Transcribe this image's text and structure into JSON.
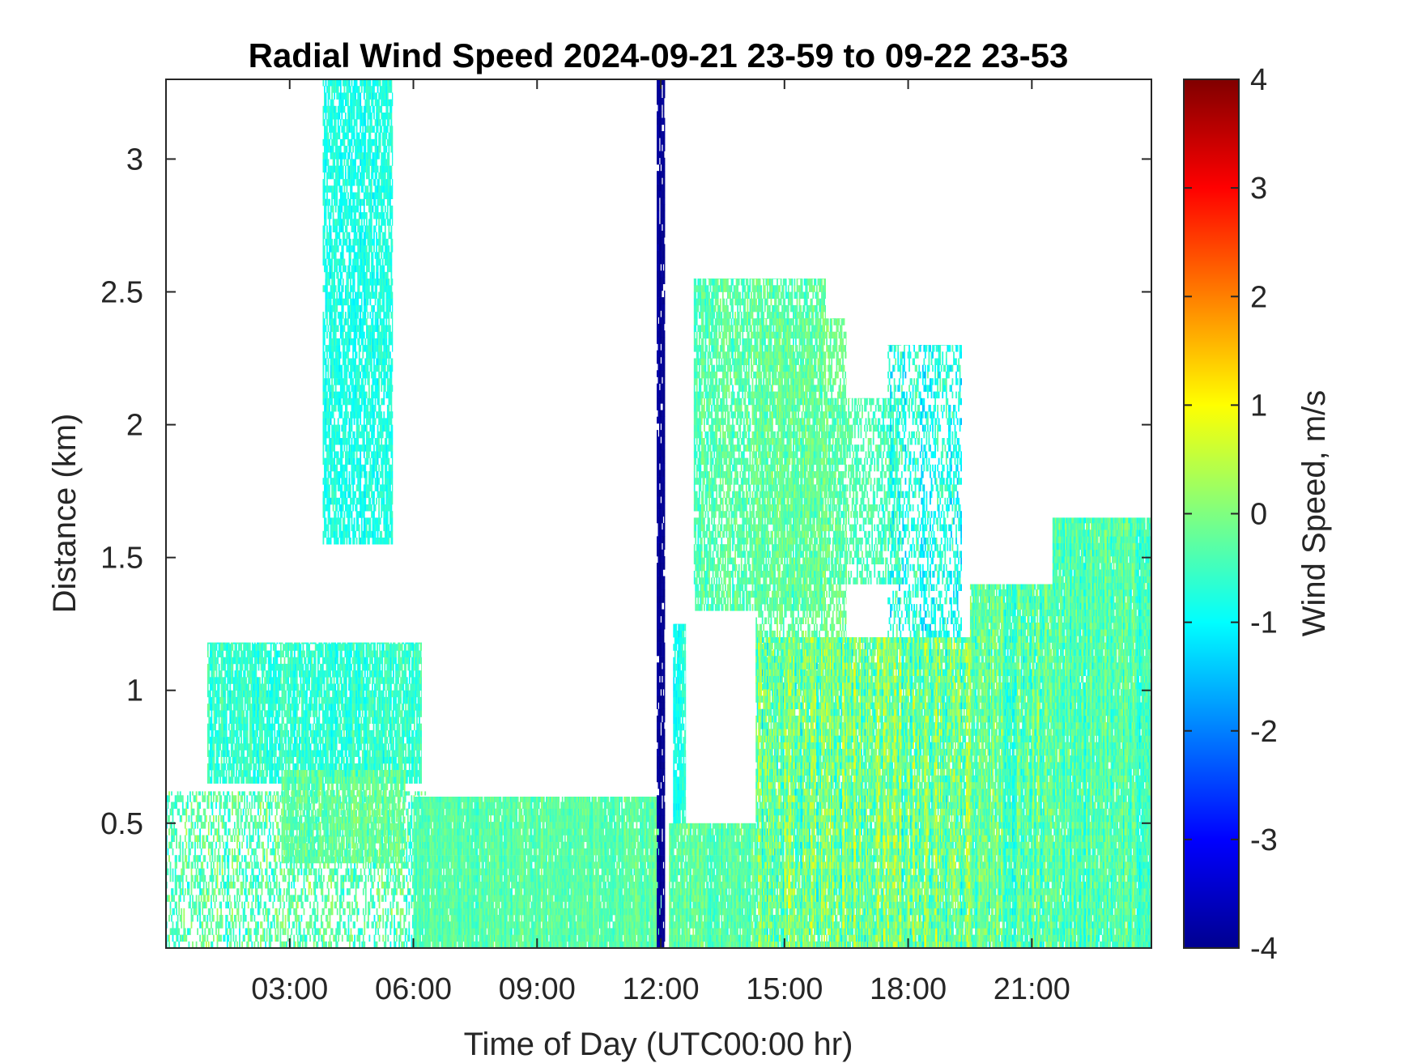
{
  "chart_data": {
    "type": "heatmap",
    "title": "Radial Wind Speed 2024-09-21 23-59 to 09-22 23-53",
    "xlabel": "Time of Day (UTC00:00 hr)",
    "ylabel": "Distance (km)",
    "colorbar_label": "Wind Speed, m/s",
    "colormap": "jet",
    "xlim_hours": [
      0.0,
      23.9
    ],
    "ylim_km": [
      0.03,
      3.3
    ],
    "clim": [
      -4,
      4
    ],
    "x_ticks": [
      {
        "value": 3,
        "label": "03:00"
      },
      {
        "value": 6,
        "label": "06:00"
      },
      {
        "value": 9,
        "label": "09:00"
      },
      {
        "value": 12,
        "label": "12:00"
      },
      {
        "value": 15,
        "label": "15:00"
      },
      {
        "value": 18,
        "label": "18:00"
      },
      {
        "value": 21,
        "label": "21:00"
      }
    ],
    "y_ticks": [
      {
        "value": 0.5,
        "label": "0.5"
      },
      {
        "value": 1,
        "label": "1"
      },
      {
        "value": 1.5,
        "label": "1.5"
      },
      {
        "value": 2,
        "label": "2"
      },
      {
        "value": 2.5,
        "label": "2.5"
      },
      {
        "value": 3,
        "label": "3"
      }
    ],
    "colorbar_ticks": [
      {
        "value": 4,
        "label": "4"
      },
      {
        "value": 3,
        "label": "3"
      },
      {
        "value": 2,
        "label": "2"
      },
      {
        "value": 1,
        "label": "1"
      },
      {
        "value": 0,
        "label": "0"
      },
      {
        "value": -1,
        "label": "-1"
      },
      {
        "value": -2,
        "label": "-2"
      },
      {
        "value": -3,
        "label": "-3"
      },
      {
        "value": -4,
        "label": "-4"
      }
    ],
    "regions": [
      {
        "t0": 0.0,
        "t1": 6.3,
        "d0": 0.03,
        "d1": 0.62,
        "mean": -0.3,
        "spread": 0.9,
        "density": 0.45
      },
      {
        "t0": 1.0,
        "t1": 6.2,
        "d0": 0.65,
        "d1": 1.18,
        "mean": -0.6,
        "spread": 0.6,
        "density": 0.85
      },
      {
        "t0": 2.8,
        "t1": 5.8,
        "d0": 0.35,
        "d1": 0.7,
        "mean": -0.2,
        "spread": 0.6,
        "density": 0.8
      },
      {
        "t0": 3.8,
        "t1": 5.5,
        "d0": 1.55,
        "d1": 3.3,
        "mean": -0.8,
        "spread": 0.5,
        "density": 0.75
      },
      {
        "t0": 6.0,
        "t1": 12.0,
        "d0": 0.03,
        "d1": 0.6,
        "mean": -0.3,
        "spread": 0.5,
        "density": 0.95
      },
      {
        "t0": 11.9,
        "t1": 12.1,
        "d0": 0.03,
        "d1": 3.3,
        "mean": -3.8,
        "spread": 0.2,
        "density": 0.9
      },
      {
        "t0": 12.2,
        "t1": 14.3,
        "d0": 0.03,
        "d1": 0.5,
        "mean": -0.3,
        "spread": 0.6,
        "density": 0.95
      },
      {
        "t0": 12.3,
        "t1": 12.6,
        "d0": 0.5,
        "d1": 1.25,
        "mean": -0.8,
        "spread": 0.5,
        "density": 0.9
      },
      {
        "t0": 12.8,
        "t1": 16.0,
        "d0": 1.3,
        "d1": 2.55,
        "mean": -0.3,
        "spread": 0.6,
        "density": 0.75
      },
      {
        "t0": 14.3,
        "t1": 16.5,
        "d0": 1.0,
        "d1": 2.4,
        "mean": -0.2,
        "spread": 0.6,
        "density": 0.55
      },
      {
        "t0": 16.0,
        "t1": 17.8,
        "d0": 1.4,
        "d1": 2.1,
        "mean": -0.4,
        "spread": 0.6,
        "density": 0.5
      },
      {
        "t0": 14.3,
        "t1": 19.5,
        "d0": 0.03,
        "d1": 1.2,
        "mean": -0.1,
        "spread": 1.3,
        "density": 0.95
      },
      {
        "t0": 17.5,
        "t1": 19.3,
        "d0": 1.2,
        "d1": 2.3,
        "mean": -0.8,
        "spread": 0.9,
        "density": 0.45
      },
      {
        "t0": 19.5,
        "t1": 21.5,
        "d0": 0.03,
        "d1": 1.4,
        "mean": -0.3,
        "spread": 1.0,
        "density": 0.95
      },
      {
        "t0": 21.5,
        "t1": 23.9,
        "d0": 0.03,
        "d1": 1.65,
        "mean": -0.4,
        "spread": 0.8,
        "density": 0.97
      }
    ]
  }
}
